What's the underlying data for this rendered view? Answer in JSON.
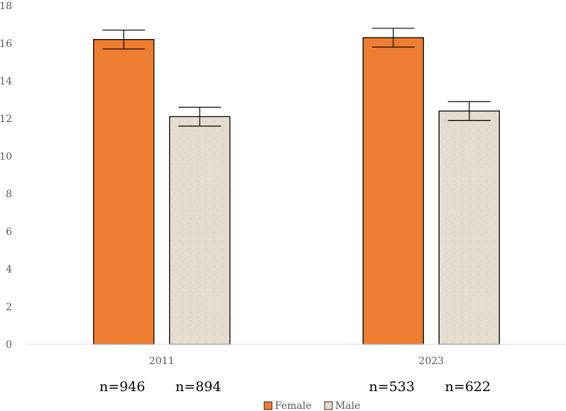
{
  "chart_data": {
    "type": "bar",
    "categories": [
      "2011",
      "2023"
    ],
    "series": [
      {
        "name": "Female",
        "values": [
          16.2,
          16.3
        ],
        "error": [
          0.5,
          0.5
        ],
        "color": "#ed7d31",
        "pattern": "solid"
      },
      {
        "name": "Male",
        "values": [
          12.1,
          12.4
        ],
        "error": [
          0.5,
          0.5
        ],
        "color": "#e3dccf",
        "pattern": "sand-texture"
      }
    ],
    "sample_sizes": [
      [
        "n=946",
        "n=894"
      ],
      [
        "n=533",
        "n=622"
      ]
    ],
    "ylim": [
      0,
      18
    ],
    "yticks": [
      0,
      2,
      4,
      6,
      8,
      10,
      12,
      14,
      16,
      18
    ],
    "title": "",
    "xlabel": "",
    "ylabel": "",
    "grid": false,
    "legend_position": "bottom"
  }
}
